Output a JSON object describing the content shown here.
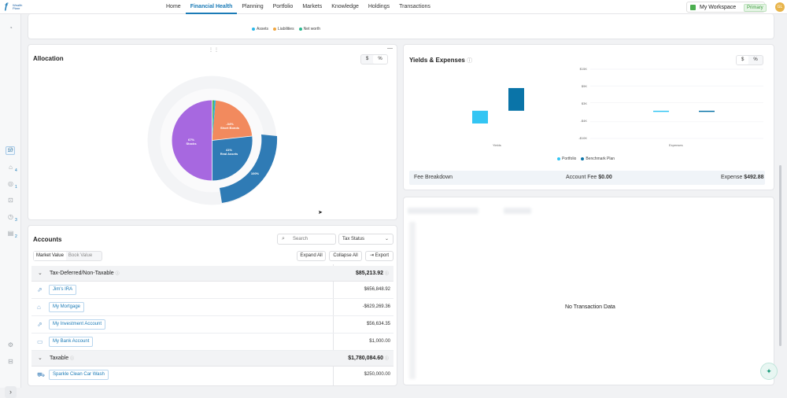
{
  "nav": {
    "logo_text": "Wealth Planr",
    "links": [
      "Home",
      "Financial Health",
      "Planning",
      "Portfolio",
      "Markets",
      "Knowledge",
      "Holdings",
      "Transactions"
    ],
    "active": "Financial Health",
    "workspace_label": "My Workspace",
    "workspace_badge": "Primary",
    "avatar": "GL"
  },
  "sidebar": {
    "badges": [
      "10",
      "4",
      "1",
      "3",
      "2"
    ]
  },
  "networth_legend": [
    "Assets",
    "Liabilities",
    "Net worth"
  ],
  "colors": {
    "assets": "#29b6e8",
    "liabilities": "#f0a640",
    "networth": "#2bb88f",
    "stocks": "#a768e0",
    "short_bonds": "#f28a5e",
    "real_assets": "#2f7bb5",
    "cash": "#29b6e8",
    "other": "#4caf50",
    "portfolio": "#33c5f3",
    "benchmark": "#0a74a8"
  },
  "allocation": {
    "title": "Allocation",
    "toggle": [
      "$",
      "%"
    ],
    "labels": {
      "stocks": "Stocks",
      "short_bonds": "Short Bonds",
      "real_assets": "Real Assets"
    },
    "pct": {
      "stocks": "67%",
      "short_bonds": "-34%",
      "real_assets": "41%",
      "outer": "100%"
    }
  },
  "chart_data": {
    "type": "bar",
    "title": "Yields & Expenses",
    "categories": [
      "Yields",
      "Expenses"
    ],
    "series": [
      {
        "name": "Portfolio",
        "values": [
          -4.6,
          -0.2
        ]
      },
      {
        "name": "Benchmark Plan",
        "values": [
          8.2,
          -0.1
        ]
      }
    ],
    "ylim": [
      -10,
      15
    ],
    "yticks": [
      15,
      9,
      3,
      -4,
      -10
    ],
    "ytick_labels": [
      "$15K",
      "$9K",
      "$3K",
      "-$4K",
      "-$10K"
    ],
    "toggle": [
      "$",
      "%"
    ],
    "legend": "bottom"
  },
  "fees": {
    "title": "Fee Breakdown",
    "account_label": "Account Fee",
    "account_value": "$0.00",
    "expense_label": "Expense",
    "expense_value": "$492.88"
  },
  "transactions": {
    "empty": "No Transaction Data"
  },
  "accounts": {
    "title": "Accounts",
    "search_placeholder": "Search",
    "filter": "Tax Status",
    "view_toggle": [
      "Market Value",
      "Book Value"
    ],
    "expand_all": "Expand All",
    "collapse_all": "Collapse All",
    "export": "Export",
    "groups": [
      {
        "name": "Tax-Deferred/Non-Taxable",
        "total": "$85,213.92",
        "items": [
          {
            "name": "Jim's IRA",
            "value": "$656,848.92"
          },
          {
            "name": "My Mortgage",
            "value": "-$629,269.36"
          },
          {
            "name": "My Investment Account",
            "value": "$56,634.35"
          },
          {
            "name": "My Bank Account",
            "value": "$1,000.00"
          }
        ]
      },
      {
        "name": "Taxable",
        "total": "$1,780,084.60",
        "items": [
          {
            "name": "Sparkle Clean Car Wash",
            "value": "$250,000.00"
          }
        ]
      }
    ]
  }
}
